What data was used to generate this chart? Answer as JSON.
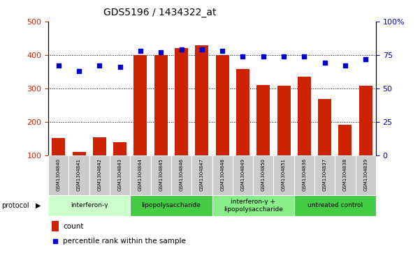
{
  "title": "GDS5196 / 1434322_at",
  "samples": [
    "GSM1304840",
    "GSM1304841",
    "GSM1304842",
    "GSM1304843",
    "GSM1304844",
    "GSM1304845",
    "GSM1304846",
    "GSM1304847",
    "GSM1304848",
    "GSM1304849",
    "GSM1304850",
    "GSM1304851",
    "GSM1304836",
    "GSM1304837",
    "GSM1304838",
    "GSM1304839"
  ],
  "counts": [
    152,
    110,
    155,
    140,
    400,
    400,
    420,
    428,
    400,
    358,
    311,
    308,
    335,
    268,
    192,
    308
  ],
  "percentiles": [
    67,
    63,
    67,
    66,
    78,
    77,
    79,
    79,
    78,
    74,
    74,
    74,
    74,
    69,
    67,
    72
  ],
  "ylim_left": [
    100,
    500
  ],
  "ylim_right": [
    0,
    100
  ],
  "yticks_left": [
    100,
    200,
    300,
    400,
    500
  ],
  "yticks_right": [
    0,
    25,
    50,
    75,
    100
  ],
  "groups": [
    {
      "label": "interferon-γ",
      "start": 0,
      "end": 4,
      "color": "#ccffcc"
    },
    {
      "label": "lipopolysaccharide",
      "start": 4,
      "end": 8,
      "color": "#44cc44"
    },
    {
      "label": "interferon-γ +\nlipopolysaccharide",
      "start": 8,
      "end": 12,
      "color": "#88ee88"
    },
    {
      "label": "untreated control",
      "start": 12,
      "end": 16,
      "color": "#44cc44"
    }
  ],
  "bar_color": "#cc2200",
  "dot_color": "#0000cc",
  "grid_color": "#000000",
  "ylabel_left_color": "#cc2200",
  "ylabel_right_color": "#0000cc",
  "tick_label_bg": "#cccccc",
  "protocol_label": "protocol",
  "legend_count": "count",
  "legend_percentile": "percentile rank within the sample",
  "bar_bottom": 100
}
